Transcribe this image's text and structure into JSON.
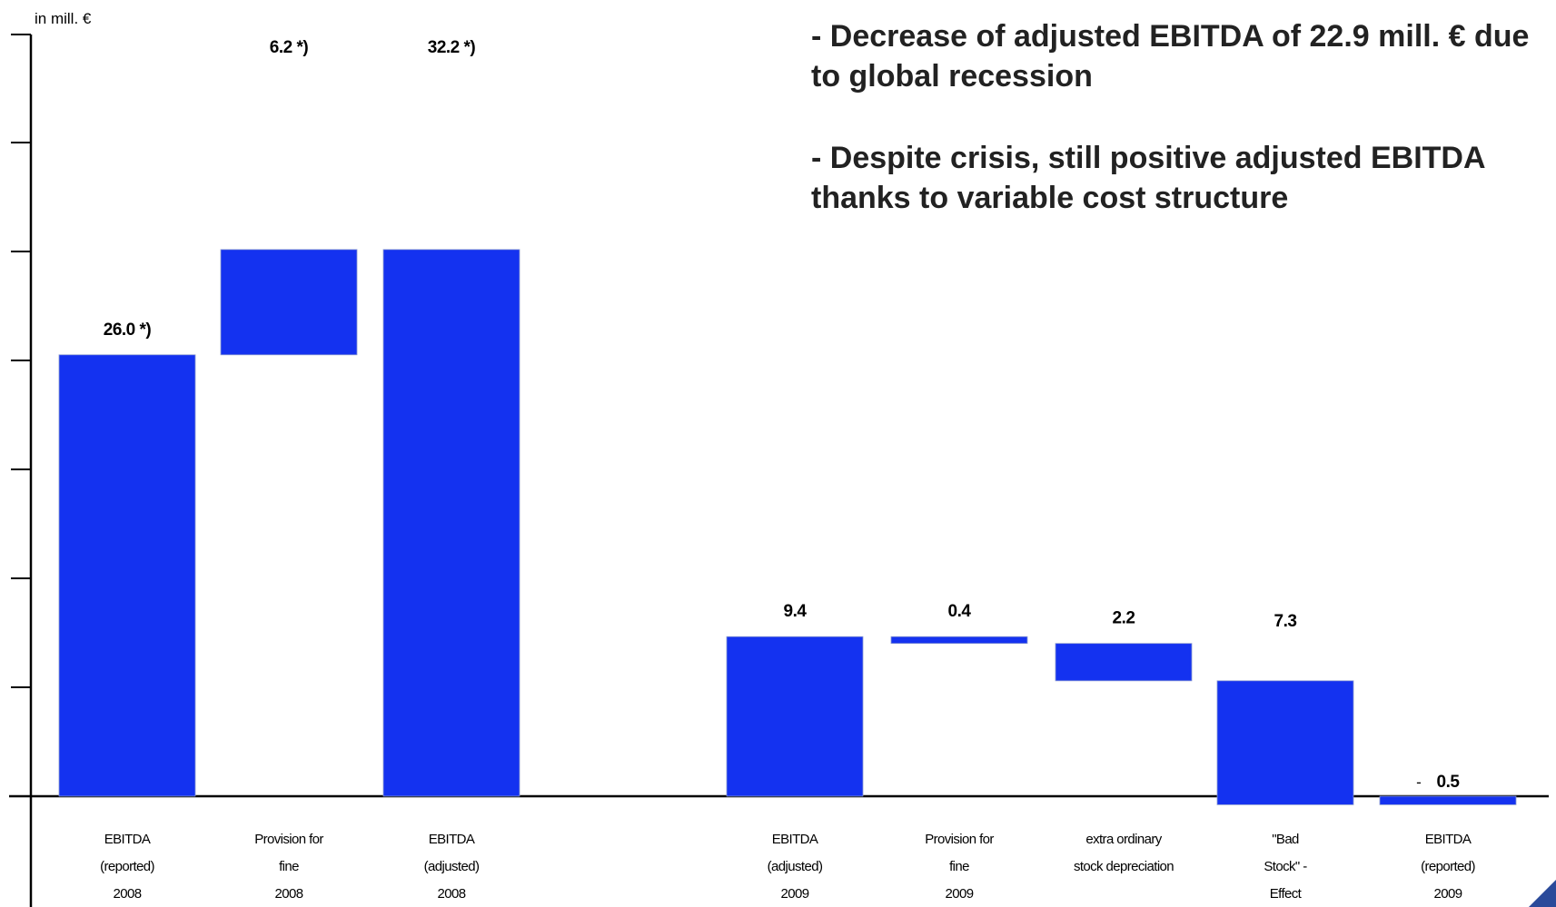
{
  "bullets": [
    "- Decrease of adjusted EBITDA of 22.9 mill. € due to global recession",
    "- Despite crisis, still positive adjusted EBITDA thanks to variable cost structure"
  ],
  "chart_data": {
    "type": "waterfall",
    "unit_label": "in mill. €",
    "ylim": [
      0,
      35
    ],
    "bar_color": "#1432f0",
    "bars": [
      {
        "id": "ebitda-reported-2008",
        "kind": "total",
        "start": 0,
        "end": 26.0,
        "label": "26.0 *)",
        "category": [
          "EBITDA",
          "(reported)",
          "2008"
        ]
      },
      {
        "id": "provision-2008",
        "kind": "delta",
        "start": 26.0,
        "end": 32.2,
        "label": "6.2 *)",
        "category": [
          "Provision for",
          "fine",
          "2008"
        ]
      },
      {
        "id": "ebitda-adjusted-2008",
        "kind": "total",
        "start": 0,
        "end": 32.2,
        "label": "32.2 *)",
        "category": [
          "EBITDA",
          "(adjusted)",
          "2008"
        ]
      },
      {
        "id": "ebitda-adjusted-2009",
        "kind": "total",
        "start": 0,
        "end": 9.4,
        "label": "9.4",
        "category": [
          "EBITDA",
          "(adjusted)",
          "2009"
        ]
      },
      {
        "id": "provision-2009",
        "kind": "delta",
        "start": 9.4,
        "end": 9.0,
        "label": "0.4",
        "category": [
          "Provision for",
          "fine",
          "2009"
        ]
      },
      {
        "id": "stock-depreciation",
        "kind": "delta",
        "start": 9.0,
        "end": 6.8,
        "label": "2.2",
        "category": [
          "extra ordinary",
          "stock depreciation"
        ]
      },
      {
        "id": "bad-stock",
        "kind": "delta",
        "start": 6.8,
        "end": -0.5,
        "label": "7.3",
        "category": [
          "\"Bad",
          "Stock\" -",
          "Effect"
        ]
      },
      {
        "id": "ebitda-reported-2009",
        "kind": "total",
        "start": 0,
        "end": -0.5,
        "label": "0.5",
        "label_prefix": "-",
        "category": [
          "EBITDA",
          "(reported)",
          "2009"
        ]
      }
    ]
  }
}
